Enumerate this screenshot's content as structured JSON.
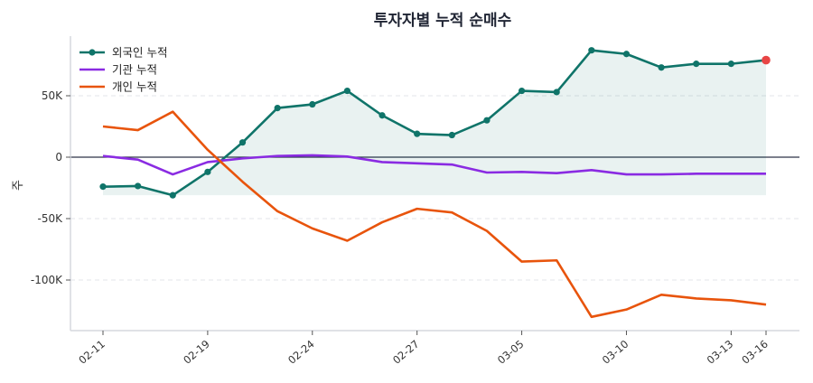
{
  "chart_data": {
    "type": "line",
    "title": "투자자별 누적 순매수",
    "ylabel": "주",
    "xlabel": "",
    "x_index": [
      0,
      1,
      2,
      3,
      4,
      5,
      6,
      7,
      8,
      9,
      10,
      11,
      12,
      13,
      14,
      15,
      16,
      17,
      18,
      19
    ],
    "x_ticks": [
      {
        "index": 0,
        "label": "02-11"
      },
      {
        "index": 3,
        "label": "02-19"
      },
      {
        "index": 6,
        "label": "02-24"
      },
      {
        "index": 9,
        "label": "02-27"
      },
      {
        "index": 12,
        "label": "03-05"
      },
      {
        "index": 15,
        "label": "03-10"
      },
      {
        "index": 18,
        "label": "03-13"
      },
      {
        "index": 19,
        "label": "03-16"
      }
    ],
    "y_ticks": [
      {
        "value": 50000,
        "label": "50K"
      },
      {
        "value": 0,
        "label": "0"
      },
      {
        "value": -50000,
        "label": "-50K"
      },
      {
        "value": -100000,
        "label": "-100K"
      }
    ],
    "ylim": [
      -140000,
      97000
    ],
    "grid": "horizontal dashed",
    "legend": "top-left",
    "series": [
      {
        "name": "외국인 누적",
        "color": "#0f7469",
        "markers": true,
        "fill": true,
        "values": [
          -24000,
          -23500,
          -31000,
          -12000,
          12000,
          40000,
          43000,
          54000,
          34000,
          19000,
          18000,
          30000,
          54000,
          53000,
          87000,
          84000,
          73000,
          76000,
          76000,
          79000
        ]
      },
      {
        "name": "기관 누적",
        "color": "#8a2be2",
        "markers": false,
        "values": [
          1000,
          -2000,
          -14000,
          -4000,
          -1000,
          1000,
          1500,
          500,
          -4000,
          -5000,
          -6000,
          -12500,
          -12000,
          -13000,
          -10500,
          -14000,
          -14000,
          -13500,
          -13500,
          -13500
        ]
      },
      {
        "name": "개인 누적",
        "color": "#e8540c",
        "markers": false,
        "values": [
          25000,
          22000,
          37000,
          6000,
          -20000,
          -44000,
          -58000,
          -68000,
          -53000,
          -42000,
          -45000,
          -60000,
          -85000,
          -84000,
          -130000,
          -124000,
          -112000,
          -115000,
          -116500,
          -120000
        ]
      }
    ],
    "highlight_last_point_color": "#e84545"
  }
}
